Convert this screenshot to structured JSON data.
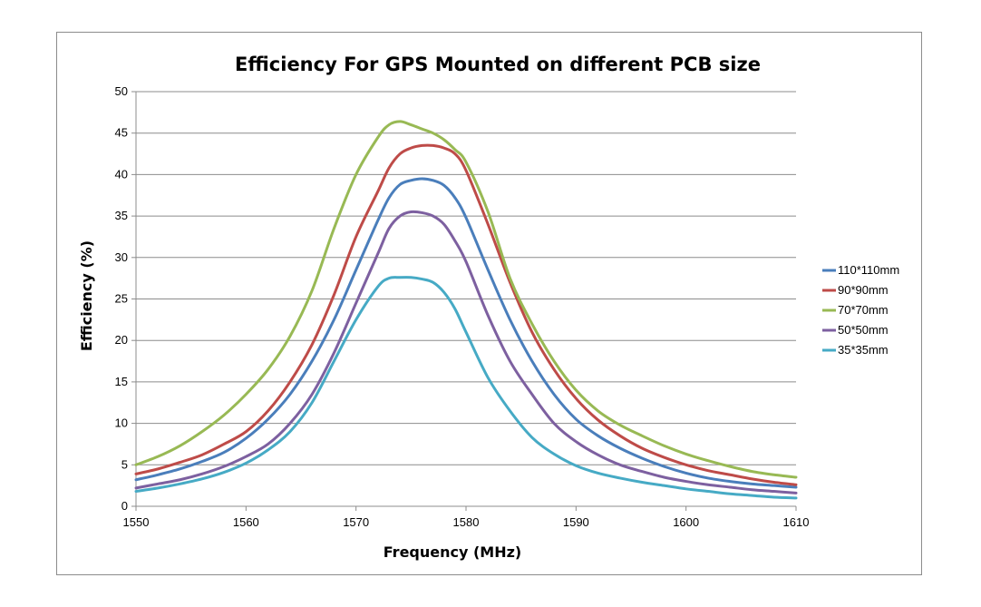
{
  "chart_data": {
    "type": "line",
    "title": "Efficiency For GPS Mounted on different PCB size",
    "xlabel": "Frequency  (MHz)",
    "ylabel": "Efficiency (%)",
    "xlim": [
      1550,
      1610
    ],
    "ylim": [
      0,
      50
    ],
    "x_ticks": [
      "1550",
      "1560",
      "1570",
      "1580",
      "1590",
      "1600",
      "1610"
    ],
    "y_ticks": [
      "0",
      "5",
      "10",
      "15",
      "20",
      "25",
      "30",
      "35",
      "40",
      "45",
      "50"
    ],
    "grid": "horizontal",
    "legend_position": "right",
    "x": [
      1550,
      1552,
      1554,
      1556,
      1558,
      1560,
      1562,
      1564,
      1566,
      1568,
      1570,
      1572,
      1573,
      1574,
      1575,
      1576,
      1577,
      1578,
      1579,
      1580,
      1582,
      1584,
      1586,
      1588,
      1590,
      1592,
      1594,
      1596,
      1598,
      1600,
      1602,
      1604,
      1606,
      1608,
      1610
    ],
    "series": [
      {
        "name": "110*110mm",
        "color": "#4a7ebb",
        "values": [
          3.2,
          3.8,
          4.5,
          5.4,
          6.5,
          8.2,
          10.5,
          13.5,
          17.5,
          22.5,
          28.5,
          34.5,
          37.2,
          38.8,
          39.3,
          39.5,
          39.3,
          38.7,
          37.2,
          34.8,
          28.5,
          22.5,
          17.5,
          13.5,
          10.5,
          8.5,
          7.0,
          5.8,
          4.8,
          4.0,
          3.4,
          3.0,
          2.7,
          2.5,
          2.3
        ]
      },
      {
        "name": "90*90mm",
        "color": "#be4b48",
        "values": [
          3.9,
          4.5,
          5.3,
          6.2,
          7.5,
          9.0,
          11.5,
          15.0,
          19.5,
          25.5,
          32.5,
          38.0,
          40.8,
          42.5,
          43.2,
          43.5,
          43.5,
          43.2,
          42.5,
          40.5,
          34.0,
          27.0,
          21.0,
          16.5,
          13.0,
          10.4,
          8.5,
          7.0,
          5.9,
          5.0,
          4.3,
          3.8,
          3.3,
          2.9,
          2.6
        ]
      },
      {
        "name": "70*70mm",
        "color": "#98b954",
        "values": [
          5.0,
          6.0,
          7.3,
          9.0,
          11.0,
          13.5,
          16.5,
          20.5,
          26.0,
          33.5,
          40.0,
          44.5,
          46.0,
          46.4,
          46.0,
          45.5,
          45.0,
          44.2,
          43.0,
          41.5,
          35.5,
          27.5,
          22.0,
          17.5,
          14.0,
          11.5,
          9.8,
          8.5,
          7.3,
          6.3,
          5.5,
          4.8,
          4.2,
          3.8,
          3.5
        ]
      },
      {
        "name": "50*50mm",
        "color": "#7d60a0",
        "values": [
          2.2,
          2.7,
          3.2,
          3.9,
          4.8,
          6.0,
          7.5,
          10.0,
          13.5,
          18.5,
          24.5,
          30.5,
          33.5,
          35.0,
          35.5,
          35.4,
          35.0,
          34.0,
          32.0,
          29.5,
          23.0,
          17.5,
          13.5,
          10.0,
          7.8,
          6.2,
          5.0,
          4.2,
          3.5,
          3.0,
          2.6,
          2.3,
          2.0,
          1.8,
          1.6
        ]
      },
      {
        "name": "35*35mm",
        "color": "#46aac5",
        "values": [
          1.8,
          2.2,
          2.7,
          3.3,
          4.1,
          5.2,
          6.8,
          9.0,
          12.5,
          17.5,
          22.5,
          26.5,
          27.5,
          27.6,
          27.6,
          27.4,
          27.0,
          25.8,
          23.8,
          21.0,
          15.5,
          11.5,
          8.3,
          6.3,
          4.9,
          4.0,
          3.4,
          2.9,
          2.5,
          2.1,
          1.8,
          1.5,
          1.3,
          1.1,
          1.0
        ]
      }
    ]
  }
}
